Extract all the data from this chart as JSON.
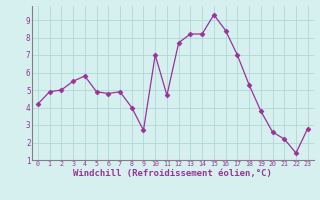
{
  "x": [
    0,
    1,
    2,
    3,
    4,
    5,
    6,
    7,
    8,
    9,
    10,
    11,
    12,
    13,
    14,
    15,
    16,
    17,
    18,
    19,
    20,
    21,
    22,
    23
  ],
  "y": [
    4.2,
    4.9,
    5.0,
    5.5,
    5.8,
    4.9,
    4.8,
    4.9,
    4.0,
    2.7,
    7.0,
    4.7,
    7.7,
    8.2,
    8.2,
    9.3,
    8.4,
    7.0,
    5.3,
    3.8,
    2.6,
    2.2,
    1.4,
    2.8
  ],
  "line_color": "#993399",
  "marker": "D",
  "markersize": 2.5,
  "linewidth": 0.9,
  "xlabel": "Windchill (Refroidissement éolien,°C)",
  "xlabel_fontsize": 6.5,
  "bg_color": "#d6f0f0",
  "grid_color": "#b0d8d8",
  "tick_label_color": "#993399",
  "axis_label_color": "#993399",
  "spine_color": "#808080",
  "ylim": [
    1,
    9.8
  ],
  "xlim": [
    -0.5,
    23.5
  ],
  "yticks": [
    1,
    2,
    3,
    4,
    5,
    6,
    7,
    8,
    9
  ],
  "xticks": [
    0,
    1,
    2,
    3,
    4,
    5,
    6,
    7,
    8,
    9,
    10,
    11,
    12,
    13,
    14,
    15,
    16,
    17,
    18,
    19,
    20,
    21,
    22,
    23
  ]
}
